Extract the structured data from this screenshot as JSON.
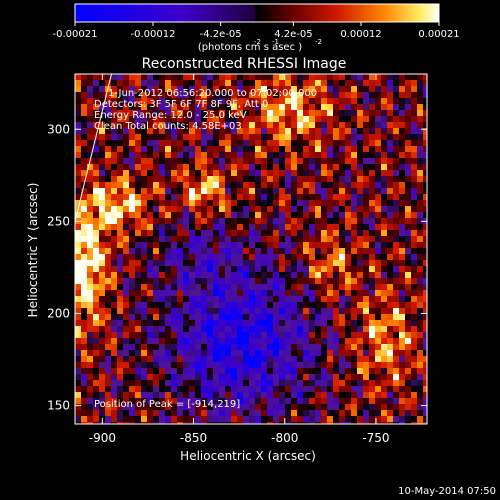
{
  "chart_data": {
    "type": "heatmap",
    "title": "Reconstructed RHESSI Image",
    "xlabel": "Heliocentric X (arcsec)",
    "ylabel": "Heliocentric Y (arcsec)",
    "xlim": [
      -915,
      -722
    ],
    "ylim": [
      140,
      330
    ],
    "x_ticks": [
      -900,
      -850,
      -800,
      -750
    ],
    "y_ticks": [
      150,
      200,
      250,
      300
    ],
    "colorbar": {
      "range": [
        -0.00021,
        0.00021
      ],
      "tick_values": [
        -0.00021,
        -0.00012,
        -4.2e-05,
        4.2e-05,
        0.00012,
        0.00021
      ],
      "tick_labels": [
        "-0.00021",
        "-0.00012",
        "-4.2e-05",
        "4.2e-05",
        "0.00012",
        "0.00021"
      ],
      "unit_label": "(photons cm  s  asec )",
      "unit_exponents": [
        "-2",
        "-1",
        "-2"
      ]
    },
    "annotations": [
      "1-Jun-2012 06:56:20.000 to 07:02:00.000",
      "Detectors: 3F 5F 6F 7F 8F 9F, Att 0",
      "Energy Range: 12.0 - 25.0 keV",
      "Clean    Total counts: 4.58E+03"
    ],
    "peak_label": "Position of Peak = [-914,219]",
    "peak_position": [
      -914,
      219
    ],
    "limb_line": [
      [
        -915,
        250
      ],
      [
        -895,
        330
      ]
    ],
    "grid": false
  },
  "footer": {
    "date_stamp": "10-May-2014 07:50"
  },
  "colors": {
    "background": "#000000",
    "text": "#ffffff"
  }
}
